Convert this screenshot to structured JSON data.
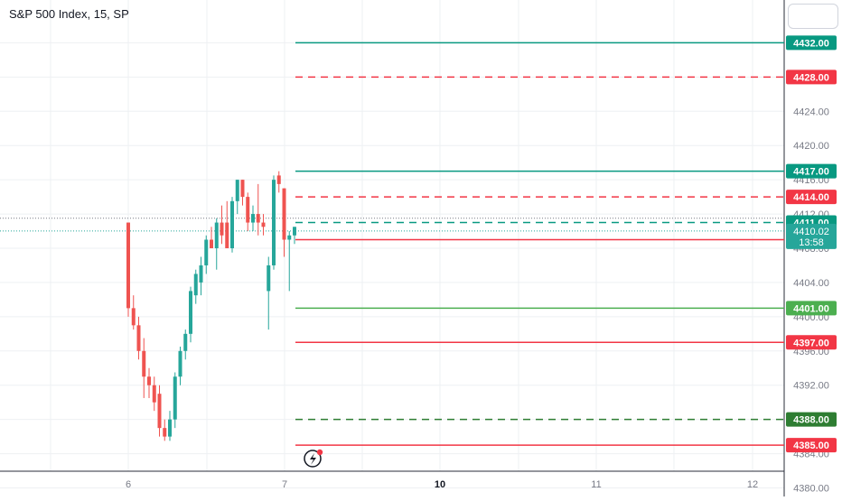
{
  "header": {
    "title": "S&P 500 Index, 15, SP"
  },
  "colors": {
    "up": "#26a69a",
    "down": "#ef5350",
    "green_line": "#089981",
    "bright_green": "#4caf50",
    "red_line": "#f23645",
    "grid": "#eef0f3",
    "axis_text": "#787b86"
  },
  "chart_data": {
    "type": "candlestick",
    "ylim": [
      4379,
      4437
    ],
    "y_ticks": [
      "4380.00",
      "4384.00",
      "4388.00",
      "4392.00",
      "4396.00",
      "4400.00",
      "4404.00",
      "4408.00",
      "4412.00",
      "4416.00",
      "4420.00",
      "4424.00",
      "4428.00",
      "4432.00"
    ],
    "x_ticks": [
      {
        "label": "6",
        "bold": false
      },
      {
        "label": "7",
        "bold": false
      },
      {
        "label": "10",
        "bold": true
      },
      {
        "label": "11",
        "bold": false
      },
      {
        "label": "12",
        "bold": false
      }
    ],
    "candles": [
      {
        "o": 4411.0,
        "h": 4411.0,
        "l": 4400.0,
        "c": 4401.0
      },
      {
        "o": 4401.0,
        "h": 4402.5,
        "l": 4398.5,
        "c": 4399.0
      },
      {
        "o": 4399.0,
        "h": 4400.0,
        "l": 4395.0,
        "c": 4396.0
      },
      {
        "o": 4396.0,
        "h": 4397.5,
        "l": 4390.5,
        "c": 4393.0
      },
      {
        "o": 4393.0,
        "h": 4394.0,
        "l": 4390.5,
        "c": 4392.0
      },
      {
        "o": 4392.0,
        "h": 4393.0,
        "l": 4389.0,
        "c": 4390.0
      },
      {
        "o": 4391.0,
        "h": 4392.0,
        "l": 4386.0,
        "c": 4387.0
      },
      {
        "o": 4387.0,
        "h": 4388.0,
        "l": 4385.5,
        "c": 4386.0
      },
      {
        "o": 4386.0,
        "h": 4389.0,
        "l": 4385.5,
        "c": 4388.0
      },
      {
        "o": 4388.0,
        "h": 4393.5,
        "l": 4387.0,
        "c": 4393.0
      },
      {
        "o": 4393.0,
        "h": 4396.5,
        "l": 4392.0,
        "c": 4396.0
      },
      {
        "o": 4396.0,
        "h": 4398.5,
        "l": 4395.0,
        "c": 4398.0
      },
      {
        "o": 4398.0,
        "h": 4403.5,
        "l": 4397.0,
        "c": 4403.0
      },
      {
        "o": 4402.5,
        "h": 4405.5,
        "l": 4401.5,
        "c": 4405.0
      },
      {
        "o": 4404.0,
        "h": 4407.0,
        "l": 4402.5,
        "c": 4406.0
      },
      {
        "o": 4406.0,
        "h": 4409.5,
        "l": 4405.0,
        "c": 4409.0
      },
      {
        "o": 4409.0,
        "h": 4410.5,
        "l": 4408.0,
        "c": 4408.0
      },
      {
        "o": 4408.0,
        "h": 4411.5,
        "l": 4405.5,
        "c": 4411.0
      },
      {
        "o": 4411.0,
        "h": 4413.0,
        "l": 4408.5,
        "c": 4409.5
      },
      {
        "o": 4411.0,
        "h": 4413.5,
        "l": 4408.0,
        "c": 4408.0
      },
      {
        "o": 4408.0,
        "h": 4414.0,
        "l": 4407.5,
        "c": 4413.5
      },
      {
        "o": 4413.5,
        "h": 4416.0,
        "l": 4412.0,
        "c": 4416.0
      },
      {
        "o": 4416.0,
        "h": 4416.0,
        "l": 4413.0,
        "c": 4414.0
      },
      {
        "o": 4414.0,
        "h": 4414.5,
        "l": 4410.0,
        "c": 4411.0
      },
      {
        "o": 4411.0,
        "h": 4413.0,
        "l": 4410.0,
        "c": 4412.0
      },
      {
        "o": 4412.0,
        "h": 4415.5,
        "l": 4409.5,
        "c": 4411.0
      },
      {
        "o": 4411.0,
        "h": 4412.0,
        "l": 4409.5,
        "c": 4410.5
      },
      {
        "o": 4403.0,
        "h": 4407.0,
        "l": 4398.5,
        "c": 4406.0
      },
      {
        "o": 4406.0,
        "h": 4416.5,
        "l": 4405.5,
        "c": 4416.0
      },
      {
        "o": 4416.5,
        "h": 4417.0,
        "l": 4414.5,
        "c": 4415.5
      },
      {
        "o": 4415.0,
        "h": 4415.0,
        "l": 4407.0,
        "c": 4409.0
      },
      {
        "o": 4409.0,
        "h": 4410.0,
        "l": 4403.0,
        "c": 4409.5
      },
      {
        "o": 4409.5,
        "h": 4410.5,
        "l": 4408.5,
        "c": 4410.5
      }
    ],
    "levels": [
      {
        "price": 4432.0,
        "label": "4432.00",
        "color": "#089981",
        "style": "solid"
      },
      {
        "price": 4428.0,
        "label": "4428.00",
        "color": "#f23645",
        "style": "dashed"
      },
      {
        "price": 4417.0,
        "label": "4417.00",
        "color": "#089981",
        "style": "solid"
      },
      {
        "price": 4414.0,
        "label": "4414.00",
        "color": "#f23645",
        "style": "dashed"
      },
      {
        "price": 4411.0,
        "label": "4411.00",
        "color": "#089981",
        "style": "dashed"
      },
      {
        "price": 4409.0,
        "label": "4409.00",
        "color": "#f23645",
        "style": "solid"
      },
      {
        "price": 4401.0,
        "label": "4401.00",
        "color": "#4caf50",
        "style": "solid"
      },
      {
        "price": 4397.0,
        "label": "4397.00",
        "color": "#f23645",
        "style": "solid"
      },
      {
        "price": 4388.0,
        "label": "4388.00",
        "color": "#2e7d32",
        "style": "dashed"
      },
      {
        "price": 4385.0,
        "label": "4385.00",
        "color": "#f23645",
        "style": "solid"
      }
    ],
    "last_price": {
      "price": 4410.02,
      "label": "4410.02",
      "countdown": "13:58",
      "color": "#26a69a"
    }
  }
}
